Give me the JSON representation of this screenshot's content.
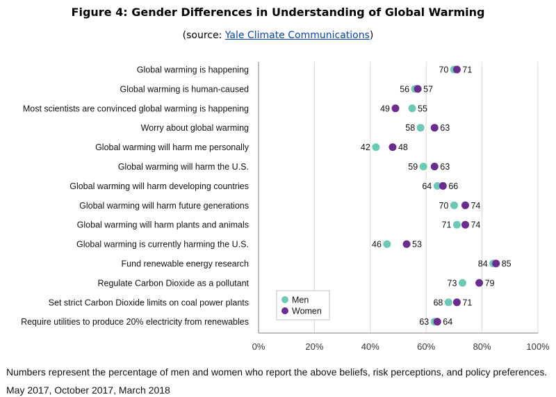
{
  "title": "Figure 4: Gender Differences in Understanding of Global Warming",
  "source": {
    "prefix": "(source: ",
    "link_text": "Yale Climate Communications",
    "suffix": ")"
  },
  "footnote": "Numbers represent the percentage of men and women who report the above beliefs, risk perceptions, and policy preferences.",
  "dates": "May 2017, October 2017, March 2018",
  "colors": {
    "men": "#6cc9b6",
    "women": "#6a2d8f",
    "grid": "#d9d9d9",
    "axis": "#7f7f7f"
  },
  "chart_data": {
    "type": "scatter",
    "orientation": "horizontal-dot-plot",
    "categories": [
      "Global warming is happening",
      "Global warming is human-caused",
      "Most scientists are convinced global warming is happening",
      "Worry about global warming",
      "Global warming will harm me personally",
      "Global warming will harm the U.S.",
      "Global warming will harm developing countries",
      "Global warming will harm future generations",
      "Global warming will harm plants and animals",
      "Global warming is currently harming the U.S.",
      "Fund renewable energy research",
      "Regulate Carbon Dioxide as a pollutant",
      "Set strict Carbon Dioxide limits on coal power plants",
      "Require utilities to produce 20% electricity from renewables"
    ],
    "series": [
      {
        "name": "Men",
        "values": [
          70,
          56,
          55,
          58,
          42,
          59,
          64,
          70,
          71,
          46,
          84,
          73,
          68,
          63
        ]
      },
      {
        "name": "Women",
        "values": [
          71,
          57,
          49,
          63,
          48,
          63,
          66,
          74,
          74,
          53,
          85,
          79,
          71,
          64
        ]
      }
    ],
    "xlim": [
      0,
      100
    ],
    "xticks": [
      "0%",
      "20%",
      "40%",
      "60%",
      "80%",
      "100%"
    ],
    "grid": "vertical",
    "legend_placement": "bottom-left-inside"
  }
}
